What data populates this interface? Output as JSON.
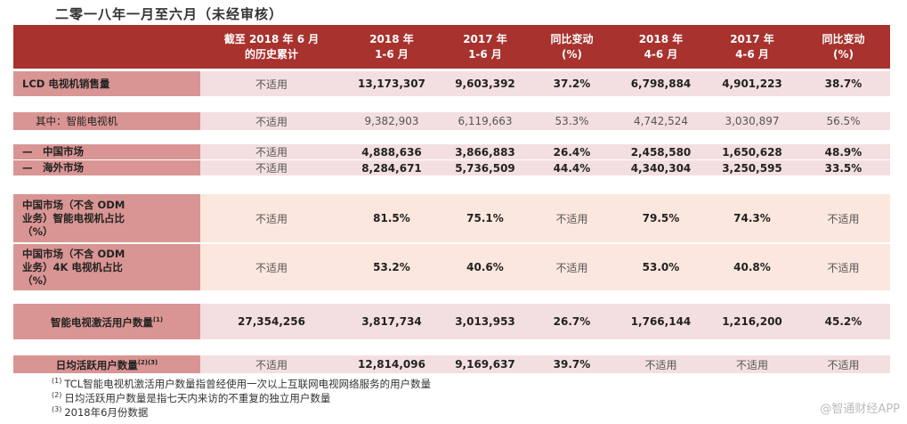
{
  "title": "二零一八年一月至六月（未经审核）",
  "table": {
    "header": [
      [
        "截至 2018 年 6 月",
        "的历史累计"
      ],
      [
        "2018 年",
        "1-6 月"
      ],
      [
        "2017 年",
        "1-6 月"
      ],
      [
        "同比变动",
        "(%)"
      ],
      [
        "2018 年",
        "4-6 月"
      ],
      [
        "2017 年",
        "4-6 月"
      ],
      [
        "同比变动",
        "(%)"
      ]
    ],
    "rows": [
      {
        "label": [
          "LCD 电视机销售量"
        ],
        "cells": [
          "不适用",
          "13,173,307",
          "9,603,392",
          "37.2%",
          "6,798,884",
          "4,901,223",
          "38.7%"
        ]
      },
      {
        "label": [
          "其中：智能电视机"
        ],
        "cells": [
          "不适用",
          "9,382,903",
          "6,119,663",
          "53.3%",
          "4,742,524",
          "3,030,897",
          "56.5%"
        ]
      },
      {
        "label": [
          "—　中国市场"
        ],
        "cells": [
          "不适用",
          "4,888,636",
          "3,866,883",
          "26.4%",
          "2,458,580",
          "1,650,628",
          "48.9%"
        ]
      },
      {
        "label": [
          "—　海外市场"
        ],
        "cells": [
          "不适用",
          "8,284,671",
          "5,736,509",
          "44.4%",
          "4,340,304",
          "3,250,595",
          "33.5%"
        ]
      },
      {
        "label": [
          "中国市场（不含 ODM",
          "业务）智能电视机占比",
          "（%）"
        ],
        "cells": [
          "不适用",
          "81.5%",
          "75.1%",
          "不适用",
          "79.5%",
          "74.3%",
          "不适用"
        ]
      },
      {
        "label": [
          "中国市场（不含 ODM",
          "业务）4K 电视机占比",
          "（%）"
        ],
        "cells": [
          "不适用",
          "53.2%",
          "40.6%",
          "不适用",
          "53.0%",
          "40.8%",
          "不适用"
        ]
      },
      {
        "label": [
          "智能电视激活用户数量"
        ],
        "note": "(1)",
        "cells": [
          "27,354,256",
          "3,817,734",
          "3,013,953",
          "26.7%",
          "1,766,144",
          "1,216,200",
          "45.2%"
        ]
      },
      {
        "label": [
          "日均活跃用户数量"
        ],
        "note": "(2)(3)",
        "cells": [
          "不适用",
          "12,814,096",
          "9,169,637",
          "39.7%",
          "不适用",
          "不适用",
          "不适用"
        ]
      }
    ]
  },
  "footnotes": [
    {
      "mark": "(1)",
      "text": "TCL智能电视机激活用户数量指曾经使用一次以上互联网电视网络服务的用户数量"
    },
    {
      "mark": "(2)",
      "text": "日均活跃用户数量是指七天内来访的不重复的独立用户数量"
    },
    {
      "mark": "(3)",
      "text": "2018年6月份数据"
    }
  ],
  "watermark": "@智通财经APP"
}
